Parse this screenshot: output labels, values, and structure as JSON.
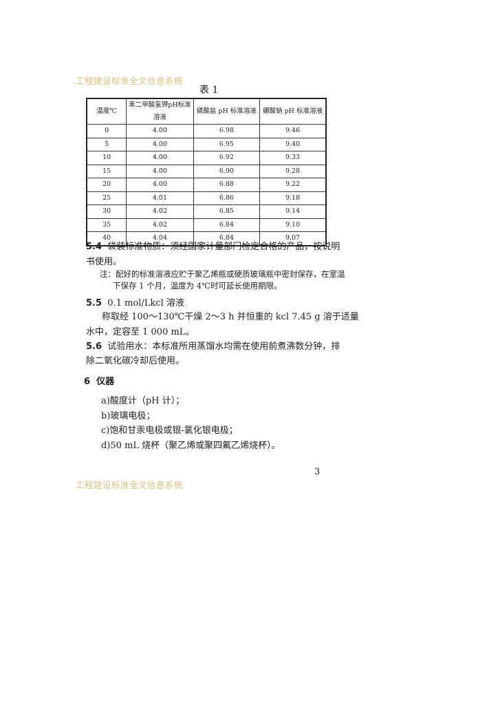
{
  "watermark": "工程建设标准全文信息系统",
  "table": {
    "caption": "表 1",
    "headers": [
      "温度℃",
      "苯二甲酸氢钾pH标准溶液",
      "磷酸盐 pH 标准溶液",
      "硼酸钠 pH 标准溶液"
    ],
    "rows": [
      [
        "0",
        "4.00",
        "6.98",
        "9.46"
      ],
      [
        "5",
        "4.00",
        "6.95",
        "9.40"
      ],
      [
        "10",
        "4.00",
        "6.92",
        "9.33"
      ],
      [
        "15",
        "4.00",
        "6.90",
        "9.28"
      ],
      [
        "20",
        "4.00",
        "6.88",
        "9.22"
      ],
      [
        "25",
        "4.01",
        "6.86",
        "9.18"
      ],
      [
        "30",
        "4.02",
        "6.85",
        "9.14"
      ],
      [
        "35",
        "4.02",
        "6.84",
        "9.10"
      ],
      [
        "40",
        "4.04",
        "6.84",
        "9.07"
      ]
    ]
  },
  "sections": {
    "s54": {
      "num": "5.4",
      "line1": "袋装标准物质：须经国家计量部门检定合格的产品，按说明",
      "line2": "书使用。",
      "note1": "注：配好的标准溶液应贮于聚乙烯瓶或硬质玻璃瓶中密封保存，在室温",
      "note2": "下保存 1 个月，温度为 4℃时可延长使用期限。"
    },
    "s55": {
      "num": "5.5",
      "title": "0.1 mol/Lkcl 溶液",
      "line1": "称取经 100～130℃干燥 2～3 h 并恒重的 kcl 7.45 g 溶于适量",
      "line2": "水中，定容至 1 000 mL。"
    },
    "s56": {
      "num": "5.6",
      "line1": "试验用水：本标准所用蒸馏水均需在使用前煮沸数分钟，排",
      "line2": "除二氧化碳冷却后使用。"
    },
    "s6": {
      "num": "6",
      "title": "仪器",
      "items": [
        "a)酸度计（pH 计）；",
        "b)玻璃电极；",
        "c)饱和甘汞电极或银-氯化银电极；",
        "d)50 mL 烧杯（聚乙烯或聚四氟乙烯烧杯）。"
      ]
    }
  },
  "page_number": "3"
}
